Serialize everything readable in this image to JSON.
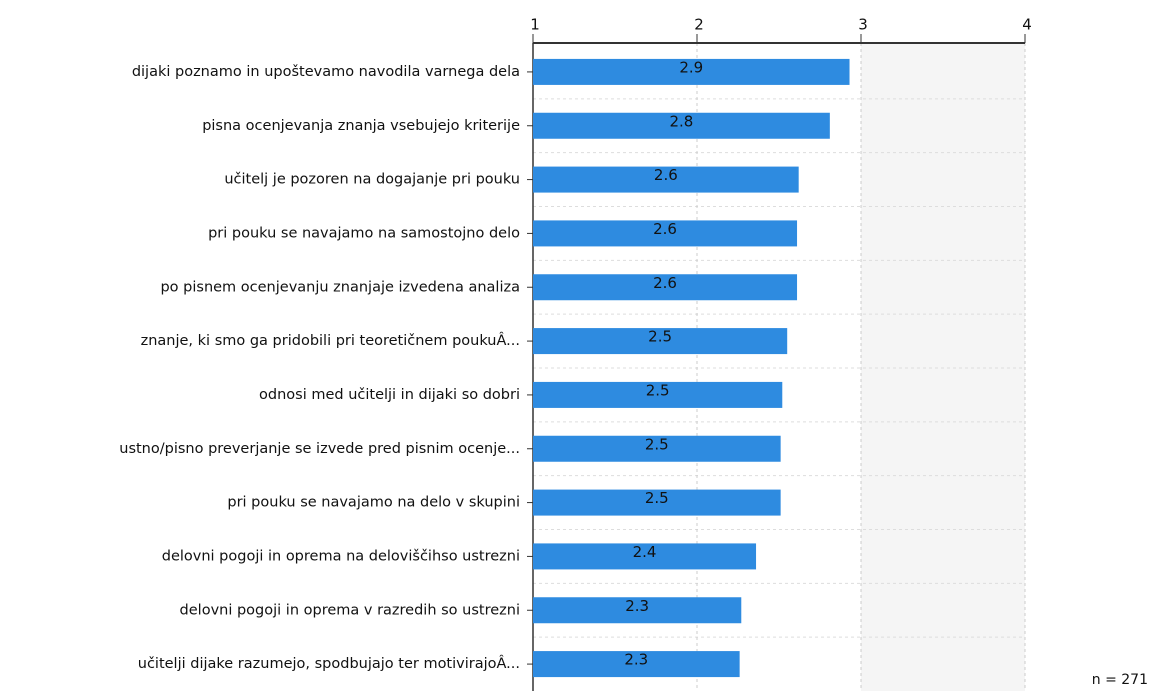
{
  "chart_data": {
    "type": "bar",
    "orientation": "horizontal",
    "categories": [
      "dijaki poznamo in upoštevamo navodila varnega dela",
      "pisna ocenjevanja znanja vsebujejo kriterije",
      "učitelj je pozoren na dogajanje pri pouku",
      "pri pouku se navajamo na samostojno delo",
      "po pisnem ocenjevanju znanjaje izvedena analiza",
      "znanje, ki smo ga pridobili pri teoretičnem poukuÂ...",
      "odnosi med učitelji in dijaki so dobri",
      "ustno/pisno preverjanje se izvede pred pisnim ocenje...",
      "pri pouku se navajamo na delo v skupini",
      "delovni pogoji in oprema na deloviščihso ustrezni",
      "delovni pogoji in oprema v razredih so ustrezni",
      "učitelji dijake razumejo, spodbujajo ter motivirajoÂ..."
    ],
    "values": [
      2.93,
      2.81,
      2.62,
      2.61,
      2.61,
      2.55,
      2.52,
      2.51,
      2.51,
      2.36,
      2.27,
      2.26
    ],
    "value_labels": [
      "2.9",
      "2.8",
      "2.6",
      "2.6",
      "2.6",
      "2.5",
      "2.5",
      "2.5",
      "2.5",
      "2.4",
      "2.3",
      "2.3"
    ],
    "color": "#2e8be0",
    "xlim": [
      1,
      4
    ],
    "xticks": [
      1,
      2,
      3,
      4
    ],
    "grid": true,
    "annotation": "n = 271"
  }
}
